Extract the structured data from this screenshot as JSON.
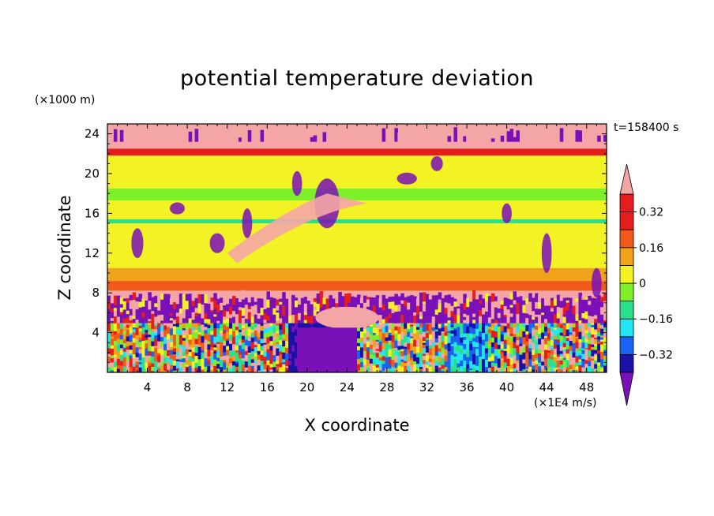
{
  "chart_data": {
    "type": "heatmap",
    "title": "potential temperature deviation",
    "xlabel": "X coordinate",
    "ylabel": "Z coordinate",
    "x_unit": "(×1E4 m/s)",
    "y_unit": "(×1000 m)",
    "time_label": "t=158400 s",
    "xlim": [
      0,
      50
    ],
    "ylim": [
      0,
      25
    ],
    "x_ticks": [
      4,
      8,
      12,
      16,
      20,
      24,
      28,
      32,
      36,
      40,
      44,
      48
    ],
    "y_ticks": [
      4,
      8,
      12,
      16,
      20,
      24
    ],
    "colorbar": {
      "levels": [
        -0.4,
        -0.32,
        -0.24,
        -0.16,
        -0.08,
        0,
        0.08,
        0.16,
        0.24,
        0.32,
        0.4
      ],
      "tick_labels": [
        "0.32",
        "0.16",
        "0",
        "−0.16",
        "−0.32"
      ],
      "tick_values": [
        0.32,
        0.16,
        0,
        -0.16,
        -0.32
      ],
      "colors": [
        "#7a10b8",
        "#1a12a8",
        "#1a63f0",
        "#22e6f2",
        "#2ae08c",
        "#7ef02a",
        "#f2f224",
        "#f0a21a",
        "#f25a1a",
        "#e61d1d",
        "#f4a6a6"
      ],
      "extend": "both"
    },
    "layers": [
      {
        "z_from": 22.5,
        "z_to": 25,
        "value": 0.45
      },
      {
        "z_from": 21.8,
        "z_to": 22.5,
        "value": 0.3
      },
      {
        "z_from": 18.5,
        "z_to": 21.8,
        "value": 0.05
      },
      {
        "z_from": 17.3,
        "z_to": 18.5,
        "value": -0.02
      },
      {
        "z_from": 15.4,
        "z_to": 17.3,
        "value": 0.05
      },
      {
        "z_from": 15.0,
        "z_to": 15.4,
        "value": -0.12
      },
      {
        "z_from": 13.0,
        "z_to": 15.0,
        "value": 0.03
      },
      {
        "z_from": 10.5,
        "z_to": 13.0,
        "value": 0.0
      },
      {
        "z_from": 9.2,
        "z_to": 10.5,
        "value": 0.14
      },
      {
        "z_from": 8.2,
        "z_to": 9.2,
        "value": 0.22
      },
      {
        "z_from": 7.2,
        "z_to": 8.2,
        "value": 0.33
      },
      {
        "z_from": 5.0,
        "z_to": 7.2,
        "value": -0.4
      },
      {
        "z_from": 0,
        "z_to": 5.0,
        "value": 0.0
      }
    ]
  }
}
